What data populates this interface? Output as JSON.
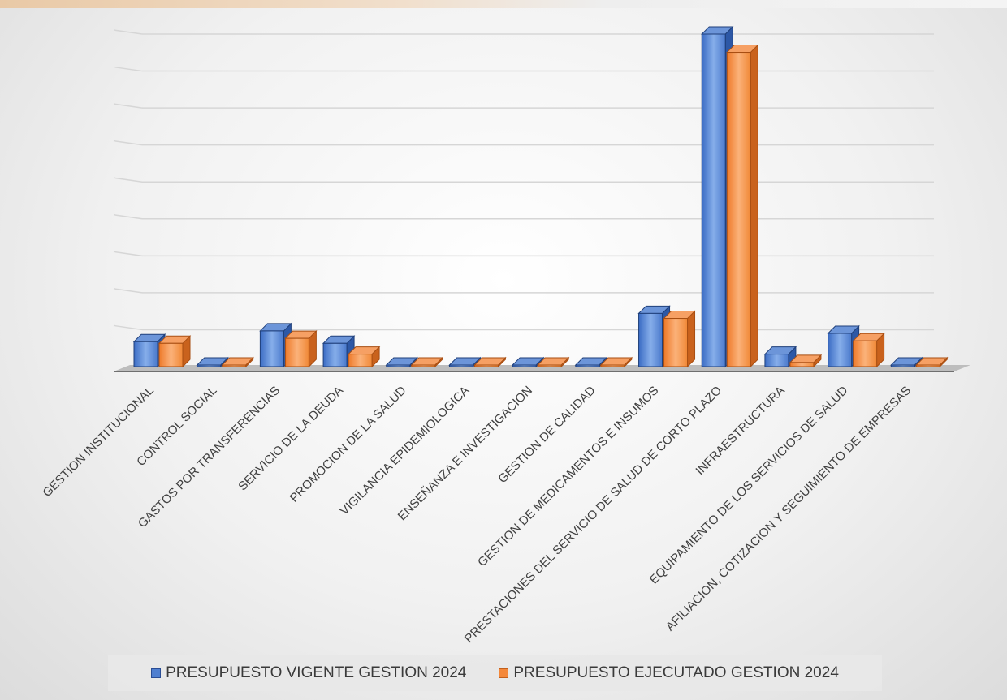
{
  "chart_data": {
    "type": "bar",
    "categories": [
      "GESTION INSTITUCIONAL",
      "CONTROL SOCIAL",
      "GASTOS POR TRANSFERENCIAS",
      "SERVICIO DE LA DEUDA",
      "PROMOCION DE LA SALUD",
      "VIGILANCIA EPIDEMIOLOGICA",
      "ENSEÑANZA E INVESTIGACION",
      "GESTION DE CALIDAD",
      "GESTION DE MEDICAMENTOS E INSUMOS",
      "PRESTACIONES DEL SERVICIO DE SALUD DE CORTO PLAZO",
      "INFRAESTRUCTURA",
      "EQUIPAMIENTO DE LOS SERVICIOS DE SALUD",
      "AFILIACION, COTIZACION Y SEGUIMIENTO DE EMPRESAS"
    ],
    "series": [
      {
        "name": "PRESUPUESTO VIGENTE GESTION 2024",
        "values": [
          30,
          0.5,
          43,
          28,
          0.3,
          0.3,
          0.3,
          0.3,
          64,
          400,
          15,
          40,
          0.2
        ]
      },
      {
        "name": "PRESUPUESTO EJECUTADO GESTION 2024",
        "values": [
          28,
          0.3,
          34,
          15,
          0.2,
          0.2,
          0.2,
          0.2,
          58,
          378,
          5,
          31,
          0.1
        ]
      }
    ],
    "ylim": [
      0,
      400
    ],
    "grid": true,
    "legend": "bottom",
    "colors": [
      "#4f7fd0",
      "#f4883a"
    ],
    "style": "3d-clustered-column"
  },
  "legend": {
    "items": [
      {
        "label": "PRESUPUESTO VIGENTE GESTION 2024"
      },
      {
        "label": "PRESUPUESTO EJECUTADO GESTION 2024"
      }
    ]
  }
}
